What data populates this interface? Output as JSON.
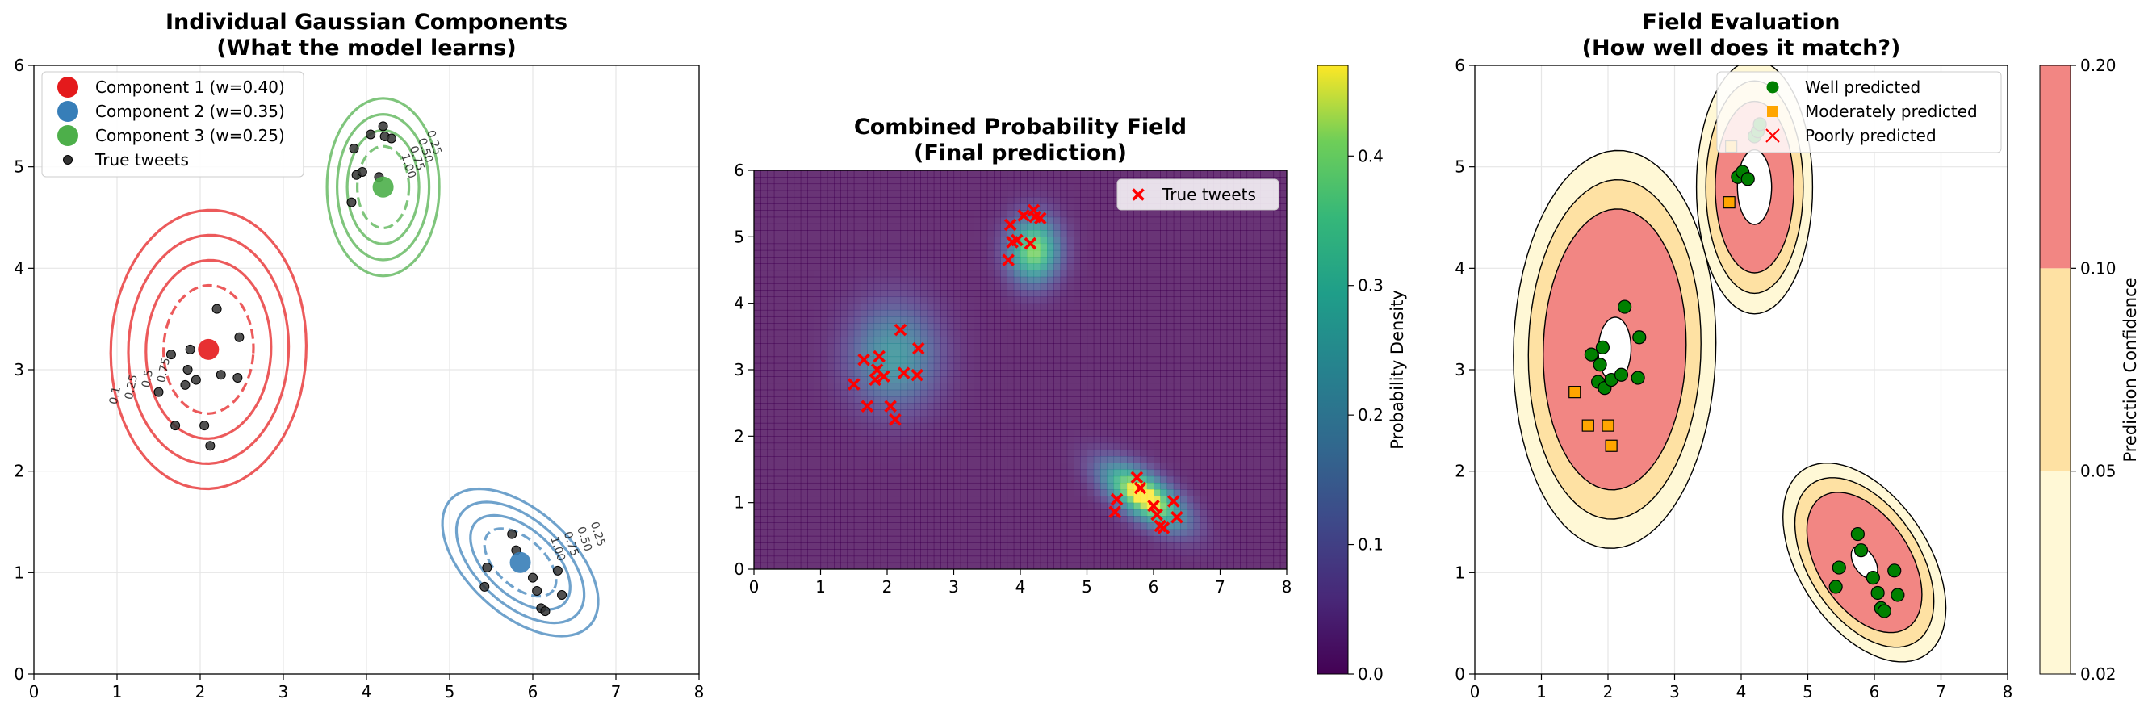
{
  "chart_data": [
    {
      "type": "contour",
      "title_line1": "Individual Gaussian Components",
      "title_line2": "(What the model learns)",
      "xlim": [
        0,
        8
      ],
      "ylim": [
        0,
        6
      ],
      "xticks": [
        0,
        1,
        2,
        3,
        4,
        5,
        6,
        7,
        8
      ],
      "yticks": [
        0,
        1,
        2,
        3,
        4,
        5,
        6
      ],
      "grid": true,
      "legend_position": "upper left",
      "legend": [
        {
          "label": "Component 1 (w=0.40)",
          "color": "#e41a1c",
          "marker": "circle"
        },
        {
          "label": "Component 2 (w=0.35)",
          "color": "#377eb8",
          "marker": "circle"
        },
        {
          "label": "Component 3 (w=0.25)",
          "color": "#4daf4a",
          "marker": "circle"
        },
        {
          "label": "True tweets",
          "color": "#333333",
          "marker": "dot"
        }
      ],
      "components": [
        {
          "name": "Component 1",
          "weight": 0.4,
          "mean": [
            2.1,
            3.2
          ],
          "color": "#e41a1c",
          "contour_labels": [
            "0.1",
            "0.25",
            "0.5",
            "0.75"
          ]
        },
        {
          "name": "Component 2",
          "weight": 0.35,
          "mean": [
            5.85,
            1.1
          ],
          "color": "#377eb8",
          "contour_labels": [
            "0.25",
            "0.50",
            "0.75",
            "1.00"
          ]
        },
        {
          "name": "Component 3",
          "weight": 0.25,
          "mean": [
            4.2,
            4.8
          ],
          "color": "#4daf4a",
          "contour_labels": [
            "0.25",
            "0.50",
            "0.75",
            "1.00"
          ]
        }
      ],
      "true_tweets": [
        [
          1.5,
          2.78
        ],
        [
          1.65,
          3.15
        ],
        [
          1.7,
          2.45
        ],
        [
          1.82,
          2.85
        ],
        [
          1.85,
          3.0
        ],
        [
          1.88,
          3.2
        ],
        [
          1.95,
          2.9
        ],
        [
          2.05,
          2.45
        ],
        [
          2.12,
          2.25
        ],
        [
          2.2,
          3.6
        ],
        [
          2.25,
          2.95
        ],
        [
          2.45,
          2.92
        ],
        [
          2.47,
          3.32
        ],
        [
          3.82,
          4.65
        ],
        [
          3.85,
          5.18
        ],
        [
          3.88,
          4.92
        ],
        [
          3.95,
          4.95
        ],
        [
          4.05,
          5.32
        ],
        [
          4.15,
          4.9
        ],
        [
          4.22,
          5.3
        ],
        [
          4.2,
          5.4
        ],
        [
          4.3,
          5.28
        ],
        [
          5.45,
          1.05
        ],
        [
          5.42,
          0.86
        ],
        [
          5.75,
          1.38
        ],
        [
          5.8,
          1.22
        ],
        [
          6.0,
          0.95
        ],
        [
          6.05,
          0.82
        ],
        [
          6.1,
          0.65
        ],
        [
          6.15,
          0.62
        ],
        [
          6.3,
          1.02
        ],
        [
          6.35,
          0.78
        ]
      ]
    },
    {
      "type": "heatmap",
      "title_line1": "Combined Probability Field",
      "title_line2": "(Final prediction)",
      "xlim": [
        0,
        8
      ],
      "ylim": [
        0,
        6
      ],
      "xticks": [
        0,
        1,
        2,
        3,
        4,
        5,
        6,
        7,
        8
      ],
      "yticks": [
        0,
        1,
        2,
        3,
        4,
        5,
        6
      ],
      "colormap": "viridis",
      "colorbar_label": "Probability Density",
      "colorbar_range": [
        0.0,
        0.47
      ],
      "colorbar_ticks": [
        "0.0",
        "0.1",
        "0.2",
        "0.3",
        "0.4"
      ],
      "legend_position": "upper right",
      "legend": [
        {
          "label": "True tweets",
          "color": "#ff0000",
          "marker": "x"
        }
      ]
    },
    {
      "type": "contourf",
      "title_line1": "Field Evaluation",
      "title_line2": "(How well does it match?)",
      "xlim": [
        0,
        8
      ],
      "ylim": [
        0,
        6
      ],
      "xticks": [
        0,
        1,
        2,
        3,
        4,
        5,
        6,
        7,
        8
      ],
      "yticks": [
        0,
        1,
        2,
        3,
        4,
        5,
        6
      ],
      "grid": true,
      "colorbar_label": "Prediction Confidence",
      "colorbar_levels": [
        "0.02",
        "0.05",
        "0.10",
        "0.20"
      ],
      "colorbar_colors": [
        "#fff8d6",
        "#fee1a3",
        "#f28683"
      ],
      "legend_position": "upper right",
      "legend": [
        {
          "label": "Well predicted",
          "color": "#008000",
          "marker": "circle"
        },
        {
          "label": "Moderately predicted",
          "color": "#ffa500",
          "marker": "square"
        },
        {
          "label": "Poorly predicted",
          "color": "#ff0000",
          "marker": "x"
        }
      ],
      "well_predicted": [
        [
          1.75,
          3.15
        ],
        [
          1.85,
          2.88
        ],
        [
          1.88,
          3.05
        ],
        [
          1.92,
          3.22
        ],
        [
          1.95,
          2.82
        ],
        [
          2.05,
          2.9
        ],
        [
          2.2,
          2.95
        ],
        [
          2.25,
          3.62
        ],
        [
          2.45,
          2.92
        ],
        [
          2.47,
          3.32
        ],
        [
          3.95,
          4.9
        ],
        [
          4.02,
          4.95
        ],
        [
          4.1,
          4.88
        ],
        [
          4.2,
          5.3
        ],
        [
          4.25,
          5.35
        ],
        [
          4.28,
          5.42
        ],
        [
          5.42,
          0.86
        ],
        [
          5.47,
          1.05
        ],
        [
          5.75,
          1.38
        ],
        [
          5.8,
          1.22
        ],
        [
          5.98,
          0.95
        ],
        [
          6.05,
          0.8
        ],
        [
          6.1,
          0.65
        ],
        [
          6.15,
          0.62
        ],
        [
          6.3,
          1.02
        ],
        [
          6.35,
          0.78
        ]
      ],
      "moderately_predicted": [
        [
          1.5,
          2.78
        ],
        [
          1.7,
          2.45
        ],
        [
          2.0,
          2.45
        ],
        [
          2.05,
          2.25
        ],
        [
          3.82,
          4.65
        ],
        [
          3.85,
          5.2
        ]
      ],
      "poorly_predicted": []
    }
  ]
}
